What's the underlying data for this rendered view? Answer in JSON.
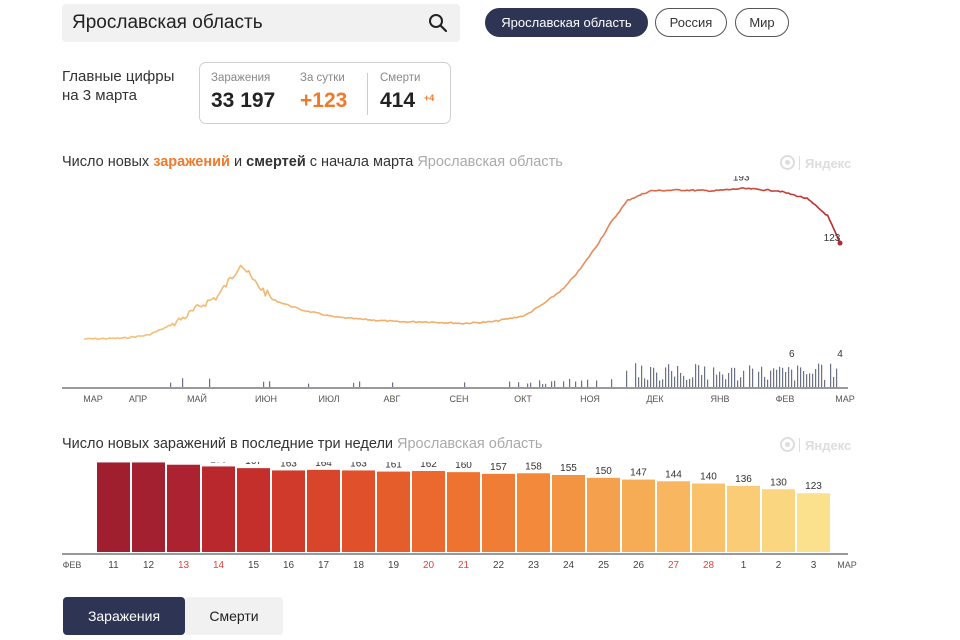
{
  "search": {
    "value": "Ярославская область"
  },
  "region_buttons": [
    "Ярославская область",
    "Россия",
    "Мир"
  ],
  "summary": {
    "caption_line1": "Главные цифры",
    "caption_line2": "на 3 марта",
    "infections_label": "Заражения",
    "infections_value": "33 197",
    "daily_label": "За сутки",
    "daily_value": "+123",
    "deaths_label": "Смерти",
    "deaths_value": "414",
    "deaths_delta": "+4"
  },
  "line_chart_header": {
    "prefix": "Число новых ",
    "infect_word": "заражений",
    "mid": " и ",
    "deaths_word": "смертей",
    "suffix": " с начала марта",
    "region": "Ярославская область"
  },
  "bar_chart_header": {
    "text": "Число новых заражений в последние три недели",
    "region": "Ярославская область"
  },
  "watermark": "Яндекс",
  "tabs": [
    "Заражения",
    "Смерти"
  ],
  "colors": {
    "dark_navy": "#2e3454",
    "orange": "#f0792a",
    "line_start": "#f2c27a",
    "line_end": "#b5282e",
    "death_bars": "#6b7286"
  },
  "chart_data": [
    {
      "type": "line",
      "series": [
        {
          "name": "заражений",
          "x": [
            "2020-03-01",
            "2020-03-20",
            "2020-04-01",
            "2020-04-10",
            "2020-04-20",
            "2020-04-28",
            "2020-05-05",
            "2020-05-12",
            "2020-05-16",
            "2020-05-22",
            "2020-06-01",
            "2020-06-15",
            "2020-07-01",
            "2020-07-15",
            "2020-08-01",
            "2020-08-15",
            "2020-09-01",
            "2020-09-15",
            "2020-10-01",
            "2020-10-10",
            "2020-10-20",
            "2020-10-28",
            "2020-11-05",
            "2020-11-12",
            "2020-11-20",
            "2020-12-01",
            "2020-12-15",
            "2021-01-01",
            "2021-01-15",
            "2021-02-01",
            "2021-02-15",
            "2021-02-25",
            "2021-03-03"
          ],
          "values": [
            0,
            1,
            5,
            15,
            30,
            45,
            55,
            80,
            98,
            75,
            50,
            37,
            28,
            25,
            22,
            22,
            20,
            22,
            30,
            45,
            65,
            90,
            120,
            150,
            178,
            190,
            191,
            190,
            193,
            190,
            180,
            158,
            123
          ]
        },
        {
          "name": "смертей",
          "annotations": [
            {
              "x": "2021-01-25",
              "value": 6
            },
            {
              "x": "2021-03-03",
              "value": 4
            }
          ]
        }
      ],
      "annotations": [
        {
          "x": "2021-01-15",
          "value": 193
        },
        {
          "x": "2021-03-03",
          "value": 123
        }
      ],
      "x_ticks": [
        "МАР",
        "АПР",
        "МАЙ",
        "ИЮН",
        "ИЮЛ",
        "АВГ",
        "СЕН",
        "ОКТ",
        "НОЯ",
        "ДЕК",
        "ЯНВ",
        "ФЕВ",
        "МАР"
      ]
    },
    {
      "type": "bar",
      "categories": [
        "11",
        "12",
        "13",
        "14",
        "15",
        "16",
        "17",
        "18",
        "19",
        "20",
        "21",
        "22",
        "23",
        "24",
        "25",
        "26",
        "27",
        "28",
        "1",
        "2",
        "3"
      ],
      "values": [
        177,
        177,
        173,
        170,
        167,
        163,
        164,
        163,
        161,
        162,
        160,
        157,
        158,
        155,
        150,
        147,
        144,
        140,
        136,
        130,
        123
      ],
      "weekend_days": [
        "13",
        "14",
        "20",
        "21",
        "27",
        "28"
      ],
      "edge_labels": [
        "ФЕВ",
        "МАР"
      ]
    }
  ]
}
